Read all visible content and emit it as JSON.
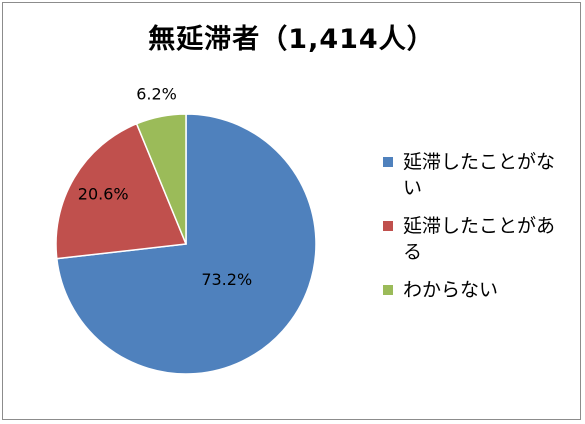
{
  "chart_data": {
    "type": "pie",
    "title": "無延滞者（1,414人）",
    "start_angle_deg": 0,
    "direction": "clockwise",
    "legend_position": "right",
    "slices": [
      {
        "label": "延滞したことがない",
        "value": 73.2,
        "display": "73.2%",
        "color": "#4f81bd"
      },
      {
        "label": "延滞したことがある",
        "value": 20.6,
        "display": "20.6%",
        "color": "#c0504d"
      },
      {
        "label": "わからない",
        "value": 6.2,
        "display": "6.2%",
        "color": "#9bbb59"
      }
    ]
  }
}
